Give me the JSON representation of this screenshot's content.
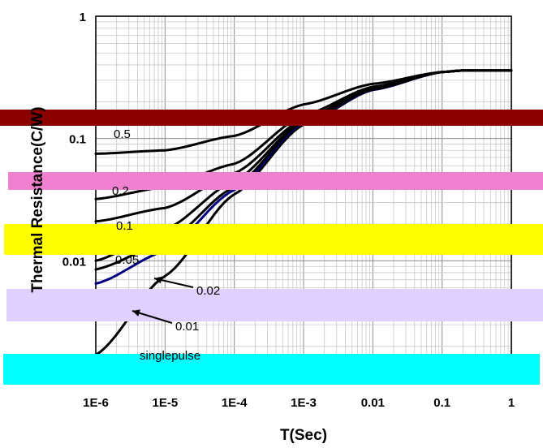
{
  "chart_data": {
    "type": "line",
    "title": "",
    "xlabel": "T(Sec)",
    "ylabel": "Thermal Resistance(C/W)",
    "x_scale": "log",
    "y_scale": "log",
    "xlim": [
      1e-06,
      1
    ],
    "ylim": [
      0.001,
      1
    ],
    "grid": true,
    "x_ticks": [
      "1E-6",
      "1E-5",
      "1E-4",
      "1E-3",
      "0.01",
      "0.1",
      "1"
    ],
    "y_ticks": [
      "1",
      "0.1",
      "0.01"
    ],
    "series": [
      {
        "name": "singlepulse",
        "color": "#000000",
        "x": [
          1e-06,
          1e-05,
          0.0001,
          0.001,
          0.01,
          0.1,
          0.2,
          1
        ],
        "y": [
          0.0017,
          0.0075,
          0.035,
          0.13,
          0.25,
          0.35,
          0.36,
          0.36
        ]
      },
      {
        "name": "0.01",
        "color": "#000080",
        "x": [
          1e-06,
          1e-05,
          0.0001,
          0.001,
          0.01,
          0.1,
          0.2,
          1
        ],
        "y": [
          0.0065,
          0.012,
          0.038,
          0.135,
          0.25,
          0.35,
          0.36,
          0.36
        ]
      },
      {
        "name": "0.02",
        "color": "#000000",
        "x": [
          1e-06,
          1e-05,
          0.0001,
          0.001,
          0.01,
          0.1,
          0.2,
          1
        ],
        "y": [
          0.0085,
          0.014,
          0.04,
          0.138,
          0.252,
          0.35,
          0.36,
          0.36
        ]
      },
      {
        "name": "0.05",
        "color": "#000000",
        "x": [
          1e-06,
          1e-05,
          0.0001,
          0.001,
          0.01,
          0.1,
          0.2,
          1
        ],
        "y": [
          0.01,
          0.018,
          0.045,
          0.14,
          0.255,
          0.35,
          0.36,
          0.36
        ]
      },
      {
        "name": "0.1",
        "color": "#000000",
        "x": [
          1e-06,
          1e-05,
          0.0001,
          0.001,
          0.01,
          0.1,
          0.2,
          1
        ],
        "y": [
          0.021,
          0.027,
          0.052,
          0.145,
          0.26,
          0.35,
          0.36,
          0.36
        ]
      },
      {
        "name": "0.2",
        "color": "#000000",
        "x": [
          1e-06,
          1e-05,
          0.0001,
          0.001,
          0.01,
          0.1,
          0.2,
          1
        ],
        "y": [
          0.032,
          0.04,
          0.062,
          0.155,
          0.265,
          0.35,
          0.36,
          0.36
        ]
      },
      {
        "name": "0.5",
        "color": "#000000",
        "x": [
          1e-06,
          1e-05,
          0.0001,
          0.001,
          0.01,
          0.1,
          0.2,
          1
        ],
        "y": [
          0.075,
          0.08,
          0.105,
          0.19,
          0.28,
          0.35,
          0.36,
          0.36
        ]
      }
    ],
    "curve_labels": [
      "0.5",
      "0.2",
      "0.1",
      "0.05",
      "0.02",
      "0.01",
      "singlepulse"
    ]
  },
  "overlays": [
    {
      "color": "#8B0000"
    },
    {
      "color": "#F080D0"
    },
    {
      "color": "#FFFF00"
    },
    {
      "color": "#E0D0FF"
    },
    {
      "color": "#00FFFF"
    }
  ]
}
